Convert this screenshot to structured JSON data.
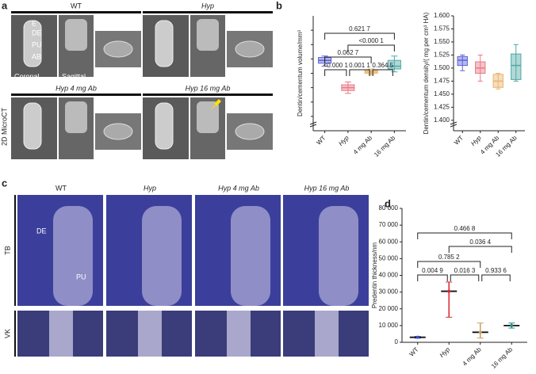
{
  "panel_a": {
    "letter": "a",
    "side_label": "2D MicroCT",
    "headers": [
      "WT",
      "Hyp",
      "Hyp 4 mg Ab",
      "Hyp 16 mg Ab"
    ],
    "structures": [
      "E",
      "DE",
      "PU",
      "AB"
    ],
    "views": [
      "Coronal",
      "Sagittal",
      "Axial"
    ],
    "roots": "Roots",
    "scale": "1 mm"
  },
  "panel_b": {
    "letter": "b"
  },
  "panel_c": {
    "letter": "c",
    "headers": [
      "WT",
      "Hyp",
      "Hyp 4 mg Ab",
      "Hyp 16 mg Ab"
    ],
    "rows": [
      "TB",
      "VK"
    ],
    "structures": [
      "DE",
      "PU"
    ]
  },
  "panel_d": {
    "letter": "d"
  },
  "chart_data": [
    {
      "type": "box",
      "ylabel": "Dentin/cementum volume/mm³",
      "categories": [
        "WT",
        "Hyp",
        "4 mg Ab",
        "16 mg Ab"
      ],
      "colors": [
        "#5b63d6",
        "#e97a86",
        "#e8b46e",
        "#4fa9a6"
      ],
      "boxes": [
        {
          "min": 0.75,
          "q1": 0.77,
          "median": 0.79,
          "q3": 0.81,
          "max": 0.82
        },
        {
          "min": 0.56,
          "q1": 0.58,
          "median": 0.6,
          "q3": 0.62,
          "max": 0.64
        },
        {
          "min": 0.69,
          "q1": 0.7,
          "median": 0.71,
          "q3": 0.72,
          "max": 0.73
        },
        {
          "min": 0.71,
          "q1": 0.73,
          "median": 0.75,
          "q3": 0.79,
          "max": 0.82
        }
      ],
      "ylim": [
        0.3,
        1.1
      ],
      "yticks": [
        0.4,
        0.5,
        0.6,
        0.7,
        0.8,
        0.9,
        1.0
      ],
      "brackets": [
        {
          "text": "0.621 7",
          "from": 0,
          "to": 3
        },
        {
          "text": "<0.000 1",
          "from": 1,
          "to": 3
        },
        {
          "text": "0.062 7",
          "from": 0,
          "to": 2
        },
        {
          "text": "<0.000 1",
          "from": 0,
          "to": 1
        },
        {
          "text": "0.001 1",
          "from": 1,
          "to": 2
        },
        {
          "text": "0.364 5",
          "from": 2,
          "to": 3
        }
      ]
    },
    {
      "type": "box",
      "ylabel": "Dentin/cementum density/( mg per cm³ HA)",
      "categories": [
        "WT",
        "Hyp",
        "4 mg Ab",
        "16 mg Ab"
      ],
      "colors": [
        "#5b63d6",
        "#e97a86",
        "#e8b46e",
        "#4fa9a6"
      ],
      "boxes": [
        {
          "min": 1.495,
          "q1": 1.505,
          "median": 1.515,
          "q3": 1.522,
          "max": 1.525
        },
        {
          "min": 1.475,
          "q1": 1.49,
          "median": 1.5,
          "q3": 1.512,
          "max": 1.525
        },
        {
          "min": 1.46,
          "q1": 1.463,
          "median": 1.475,
          "q3": 1.488,
          "max": 1.49
        },
        {
          "min": 1.475,
          "q1": 1.478,
          "median": 1.505,
          "q3": 1.527,
          "max": 1.545
        }
      ],
      "ylim": [
        1.38,
        1.6
      ],
      "yticks": [
        {
          "value": 1.4,
          "label": "1.400"
        },
        {
          "value": 1.425,
          "label": "1.425"
        },
        {
          "value": 1.45,
          "label": "1.450"
        },
        {
          "value": 1.475,
          "label": "1.475"
        },
        {
          "value": 1.5,
          "label": "1.500"
        },
        {
          "value": 1.525,
          "label": "1.525"
        },
        {
          "value": 1.55,
          "label": "1.550"
        },
        {
          "value": 1.575,
          "label": "1.575"
        },
        {
          "value": 1.6,
          "label": "1.600"
        }
      ]
    },
    {
      "type": "errorbar",
      "ylabel": "Predentin thickness/nm",
      "categories": [
        "WT",
        "Hyp",
        "4 mg Ab",
        "16 mg Ab"
      ],
      "colors": [
        "#3a4fd0",
        "#d9262e",
        "#c9a060",
        "#2c8a87"
      ],
      "values": [
        3000,
        30500,
        6000,
        10000
      ],
      "lows": [
        2500,
        15000,
        2500,
        8500
      ],
      "highs": [
        3500,
        36000,
        11500,
        11500
      ],
      "ylim": [
        0,
        80000
      ],
      "yticks": [
        0,
        {
          "value": 10000,
          "label": "10 000"
        },
        {
          "value": 20000,
          "label": "20 000"
        },
        {
          "value": 30000,
          "label": "30 000"
        },
        {
          "value": 40000,
          "label": "40 000"
        },
        {
          "value": 50000,
          "label": "50 000"
        },
        {
          "value": 60000,
          "label": "60 000"
        },
        {
          "value": 70000,
          "label": "70 000"
        },
        {
          "value": 80000,
          "label": "80 000"
        }
      ],
      "brackets": [
        {
          "text": "0.466 8",
          "from": 0,
          "to": 3
        },
        {
          "text": "0.036 4",
          "from": 1,
          "to": 3
        },
        {
          "text": "0.785 2",
          "from": 0,
          "to": 2
        },
        {
          "text": "0.004 9",
          "from": 0,
          "to": 1
        },
        {
          "text": "0.016 3",
          "from": 1,
          "to": 2
        },
        {
          "text": "0.933 6",
          "from": 2,
          "to": 3
        }
      ]
    }
  ]
}
